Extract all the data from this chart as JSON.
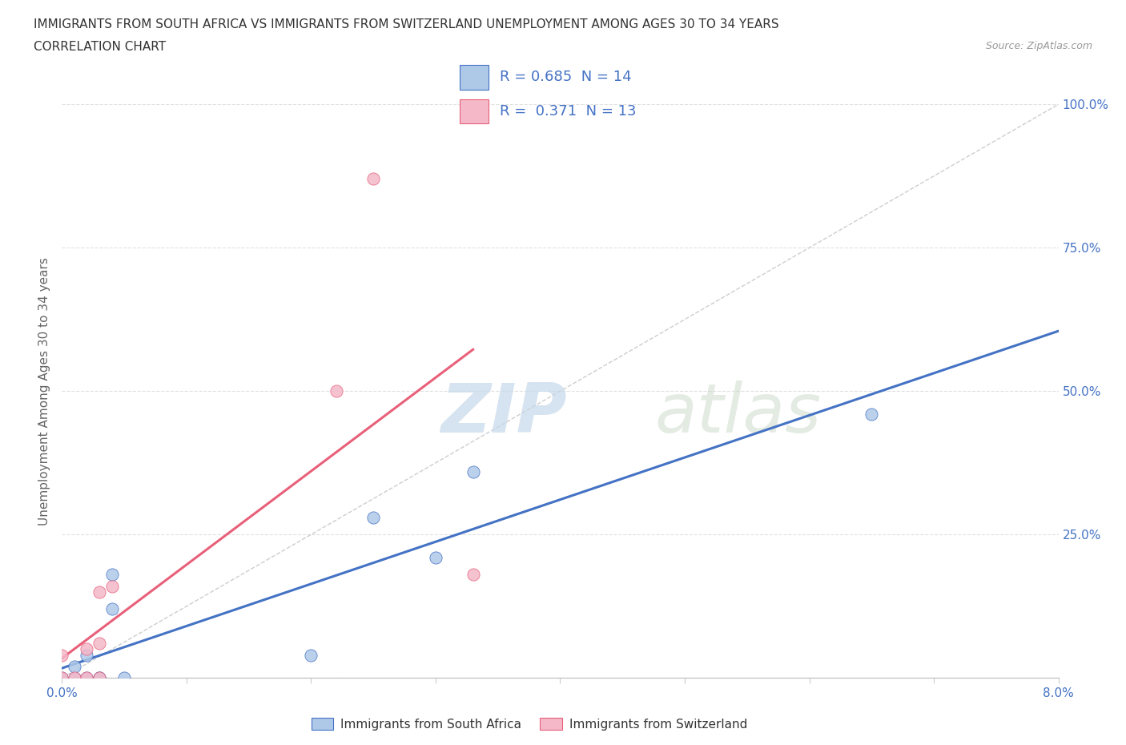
{
  "title_line1": "IMMIGRANTS FROM SOUTH AFRICA VS IMMIGRANTS FROM SWITZERLAND UNEMPLOYMENT AMONG AGES 30 TO 34 YEARS",
  "title_line2": "CORRELATION CHART",
  "source_text": "Source: ZipAtlas.com",
  "ylabel": "Unemployment Among Ages 30 to 34 years",
  "x_min": 0.0,
  "x_max": 0.08,
  "y_min": 0.0,
  "y_max": 1.0,
  "x_ticks": [
    0.0,
    0.01,
    0.02,
    0.03,
    0.04,
    0.05,
    0.06,
    0.07,
    0.08
  ],
  "x_tick_labels": [
    "0.0%",
    "",
    "",
    "",
    "",
    "",
    "",
    "",
    "8.0%"
  ],
  "y_ticks": [
    0.0,
    0.25,
    0.5,
    0.75,
    1.0
  ],
  "y_tick_labels": [
    "",
    "25.0%",
    "50.0%",
    "75.0%",
    "100.0%"
  ],
  "watermark_zip": "ZIP",
  "watermark_atlas": "atlas",
  "color_sa": "#aec8e8",
  "color_sw": "#f4b8c8",
  "line_color_sa": "#4472c4",
  "line_color_sw": "#e8607a",
  "diagonal_color": "#c8c8c8",
  "sa_x": [
    0.0,
    0.001,
    0.001,
    0.002,
    0.002,
    0.003,
    0.003,
    0.004,
    0.004,
    0.005,
    0.02,
    0.025,
    0.03,
    0.033,
    0.065
  ],
  "sa_y": [
    0.0,
    0.0,
    0.02,
    0.0,
    0.04,
    0.0,
    0.0,
    0.12,
    0.18,
    0.0,
    0.04,
    0.28,
    0.21,
    0.36,
    0.46
  ],
  "sw_x": [
    0.0,
    0.0,
    0.001,
    0.002,
    0.002,
    0.003,
    0.003,
    0.003,
    0.004,
    0.022,
    0.025,
    0.033
  ],
  "sw_y": [
    0.0,
    0.04,
    0.0,
    0.0,
    0.05,
    0.0,
    0.06,
    0.15,
    0.16,
    0.5,
    0.87,
    0.18
  ],
  "background_color": "#ffffff",
  "grid_color": "#e0e0e0",
  "legend_label_sa": "Immigrants from South Africa",
  "legend_label_sw": "Immigrants from Switzerland"
}
